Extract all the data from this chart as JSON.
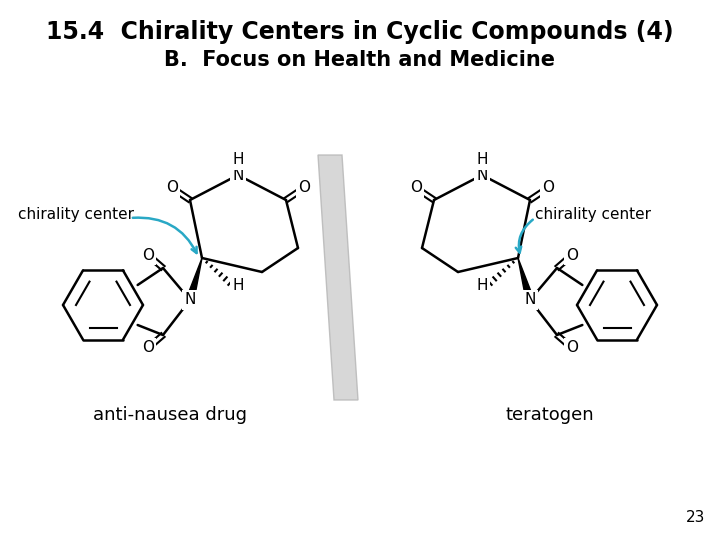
{
  "title_line1": "15.4  Chirality Centers in Cyclic Compounds (4)",
  "title_line2": "B.  Focus on Health and Medicine",
  "label_left": "anti-nausea drug",
  "label_right": "teratogen",
  "chirality_label": "chirality center",
  "page_number": "23",
  "bg_color": "#ffffff",
  "title_color": "#000000",
  "bond_color": "#000000",
  "arrow_color": "#29a8c5",
  "shadow_color": "#c8c8c8"
}
